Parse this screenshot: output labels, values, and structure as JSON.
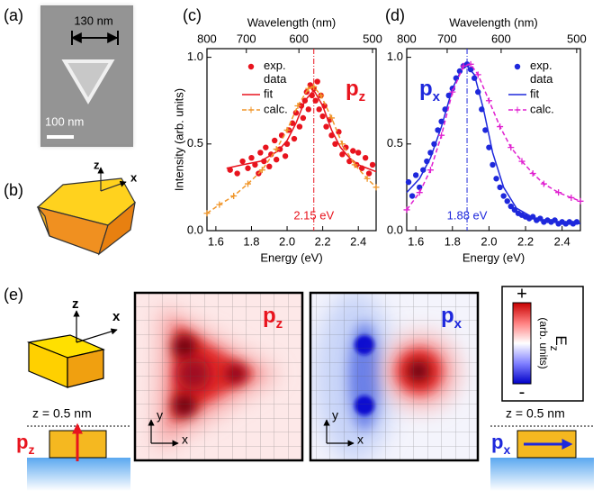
{
  "panel_labels": [
    "(a)",
    "(b)",
    "(c)",
    "(d)",
    "(e)"
  ],
  "sem": {
    "width_label": "130 nm",
    "scale_label": "100 nm"
  },
  "axes_b": {
    "z": "z",
    "x": "x"
  },
  "chart_data": [
    {
      "type": "scatter",
      "xlabel": "Energy (eV)",
      "ylabel": "Intensity (arb. units)",
      "x2label": "Wavelength (nm)",
      "xlim": [
        1.55,
        2.5
      ],
      "xticks": [
        1.6,
        1.8,
        {
          "value": 2,
          "label": "2.0"
        },
        2.2,
        2.4
      ],
      "x2ticks": [
        800,
        700,
        600,
        500
      ],
      "ylim": [
        0,
        1.05
      ],
      "yticks": [
        {
          "value": 0,
          "label": "0.0"
        },
        0.5,
        {
          "value": 1,
          "label": "1.0"
        }
      ],
      "peak": {
        "value": 2.15,
        "label": "2.15 eV"
      },
      "mode_label": {
        "main": "p",
        "sub": "z"
      },
      "mode_color": "#e8141e",
      "series": [
        {
          "name": "exp. data",
          "color": "#e8141e",
          "style": "markers",
          "x": [
            1.68,
            1.72,
            1.75,
            1.78,
            1.8,
            1.82,
            1.84,
            1.85,
            1.87,
            1.88,
            1.9,
            1.91,
            1.93,
            1.94,
            1.96,
            1.97,
            1.99,
            2.0,
            2.01,
            2.03,
            2.04,
            2.05,
            2.07,
            2.08,
            2.09,
            2.1,
            2.11,
            2.12,
            2.13,
            2.14,
            2.15,
            2.16,
            2.17,
            2.18,
            2.19,
            2.2,
            2.21,
            2.22,
            2.24,
            2.25,
            2.27,
            2.29,
            2.31,
            2.33,
            2.35,
            2.37,
            2.39,
            2.4,
            2.42,
            2.44,
            2.46,
            2.48
          ],
          "values": [
            0.35,
            0.33,
            0.4,
            0.36,
            0.42,
            0.38,
            0.33,
            0.45,
            0.4,
            0.48,
            0.37,
            0.44,
            0.52,
            0.41,
            0.47,
            0.55,
            0.43,
            0.5,
            0.58,
            0.62,
            0.53,
            0.68,
            0.6,
            0.72,
            0.65,
            0.75,
            0.8,
            0.7,
            0.84,
            0.78,
            0.82,
            0.75,
            0.86,
            0.7,
            0.78,
            0.66,
            0.72,
            0.6,
            0.64,
            0.55,
            0.5,
            0.57,
            0.44,
            0.48,
            0.4,
            0.46,
            0.38,
            0.45,
            0.36,
            0.42,
            0.33,
            0.38
          ]
        },
        {
          "name": "fit",
          "color": "#e8141e",
          "style": "line",
          "x": [
            1.66,
            1.75,
            1.85,
            1.95,
            2.0,
            2.05,
            2.1,
            2.15,
            2.2,
            2.25,
            2.3,
            2.35,
            2.4,
            2.45,
            2.5
          ],
          "values": [
            0.36,
            0.38,
            0.4,
            0.46,
            0.52,
            0.62,
            0.75,
            0.81,
            0.72,
            0.58,
            0.48,
            0.42,
            0.38,
            0.36,
            0.34
          ]
        },
        {
          "name": "calc.",
          "color": "#f0962a",
          "style": "dashed-plus",
          "x": [
            1.55,
            1.62,
            1.7,
            1.78,
            1.86,
            1.94,
            2.0,
            2.06,
            2.12,
            2.15,
            2.19,
            2.25,
            2.31,
            2.38,
            2.45,
            2.5
          ],
          "values": [
            0.1,
            0.15,
            0.2,
            0.27,
            0.35,
            0.47,
            0.58,
            0.72,
            0.82,
            0.83,
            0.78,
            0.65,
            0.5,
            0.38,
            0.3,
            0.25
          ]
        }
      ]
    },
    {
      "type": "scatter",
      "xlabel": "Energy (eV)",
      "x2label": "Wavelength (nm)",
      "xlim": [
        1.55,
        2.5
      ],
      "xticks": [
        1.6,
        1.8,
        {
          "value": 2,
          "label": "2.0"
        },
        2.2,
        2.4
      ],
      "x2ticks": [
        800,
        700,
        600,
        500
      ],
      "ylim": [
        0,
        1.05
      ],
      "yticks": [
        {
          "value": 0,
          "label": "0.0"
        },
        0.5,
        {
          "value": 1,
          "label": "1.0"
        }
      ],
      "peak": {
        "value": 1.88,
        "label": "1.88 eV"
      },
      "mode_label": {
        "main": "p",
        "sub": "x"
      },
      "mode_color": "#1e28dc",
      "series": [
        {
          "name": "exp. data",
          "color": "#1e28dc",
          "style": "markers",
          "x": [
            1.56,
            1.58,
            1.6,
            1.62,
            1.64,
            1.66,
            1.68,
            1.7,
            1.72,
            1.74,
            1.76,
            1.78,
            1.8,
            1.82,
            1.84,
            1.86,
            1.88,
            1.9,
            1.92,
            1.94,
            1.96,
            1.98,
            2.0,
            2.02,
            2.04,
            2.06,
            2.08,
            2.1,
            2.12,
            2.14,
            2.16,
            2.18,
            2.2,
            2.22,
            2.24,
            2.26,
            2.28,
            2.3,
            2.32,
            2.34,
            2.36,
            2.38,
            2.4,
            2.42,
            2.44,
            2.46,
            2.48
          ],
          "values": [
            0.28,
            0.2,
            0.32,
            0.25,
            0.35,
            0.4,
            0.45,
            0.5,
            0.58,
            0.63,
            0.7,
            0.78,
            0.82,
            0.88,
            0.92,
            0.95,
            0.96,
            0.93,
            0.88,
            0.8,
            0.7,
            0.58,
            0.48,
            0.38,
            0.3,
            0.25,
            0.2,
            0.17,
            0.14,
            0.12,
            0.1,
            0.09,
            0.08,
            0.07,
            0.08,
            0.06,
            0.07,
            0.05,
            0.06,
            0.05,
            0.06,
            0.04,
            0.05,
            0.04,
            0.05,
            0.04,
            0.05
          ]
        },
        {
          "name": "fit",
          "color": "#1e28dc",
          "style": "line",
          "x": [
            1.55,
            1.62,
            1.68,
            1.74,
            1.8,
            1.85,
            1.88,
            1.92,
            1.97,
            2.02,
            2.08,
            2.15,
            2.25,
            2.35,
            2.5
          ],
          "values": [
            0.22,
            0.3,
            0.42,
            0.6,
            0.82,
            0.93,
            0.95,
            0.9,
            0.7,
            0.45,
            0.25,
            0.13,
            0.07,
            0.05,
            0.04
          ]
        },
        {
          "name": "calc.",
          "color": "#e020d0",
          "style": "dashed-plus",
          "x": [
            1.55,
            1.62,
            1.68,
            1.74,
            1.8,
            1.86,
            1.9,
            1.94,
            2.0,
            2.06,
            2.12,
            2.18,
            2.24,
            2.3,
            2.38,
            2.45,
            2.5
          ],
          "values": [
            0.12,
            0.22,
            0.35,
            0.55,
            0.8,
            0.95,
            0.96,
            0.9,
            0.75,
            0.6,
            0.48,
            0.4,
            0.33,
            0.27,
            0.22,
            0.19,
            0.17
          ]
        }
      ]
    }
  ],
  "axes_e": {
    "z": "z",
    "x": "x"
  },
  "maps": [
    {
      "mode": {
        "main": "p",
        "sub": "z"
      },
      "axis_x": "x",
      "axis_y": "y"
    },
    {
      "mode": {
        "main": "p",
        "sub": "x"
      },
      "axis_x": "x",
      "axis_y": "y"
    }
  ],
  "colorbar": {
    "max": "+",
    "min": "-",
    "label": {
      "main": "E",
      "sub": "z"
    },
    "units": "(arb. units)"
  },
  "sides": [
    {
      "height": "z = 0.5 nm",
      "mode": {
        "main": "p",
        "sub": "z"
      }
    },
    {
      "height": "z = 0.5 nm",
      "mode": {
        "main": "p",
        "sub": "x"
      }
    }
  ]
}
